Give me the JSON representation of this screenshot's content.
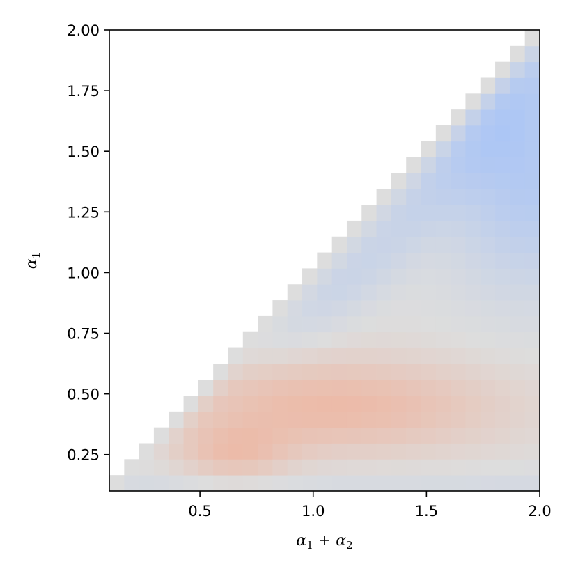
{
  "chart_data": {
    "type": "heatmap",
    "title": "",
    "xlabel": "α₁ + α₂",
    "ylabel": "α₁",
    "xlim": [
      0.1,
      2.0
    ],
    "ylim": [
      0.1,
      2.0
    ],
    "x_ticks": [
      0.5,
      1.0,
      1.5,
      2.0
    ],
    "x_tick_labels": [
      "0.5",
      "1.0",
      "1.5",
      "2.0"
    ],
    "y_ticks": [
      0.25,
      0.5,
      0.75,
      1.0,
      1.25,
      1.5,
      1.75,
      2.0
    ],
    "y_tick_labels": [
      "0.25",
      "0.50",
      "0.75",
      "1.00",
      "1.25",
      "1.50",
      "1.75",
      "2.00"
    ],
    "grid": false,
    "colormap": "coolwarm (low = blue, high = red)",
    "grid_cells": 29,
    "cell_width": 0.0655,
    "valid_region": "α₁ ≤ α₁ + α₂ (lower-right triangle); cells above the diagonal are empty",
    "value_range": [
      -1,
      1
    ],
    "colors": {
      "neutral": "#dddddd",
      "warm_max": "#f5a689",
      "cool_max": "#a6c3f8",
      "empty": "#ffffff"
    },
    "pattern": {
      "diagonal_edge_value": 0.0,
      "warm_peak": {
        "x": 1.1,
        "y": 0.45,
        "value": 0.62
      },
      "warm_secondary": {
        "x": 0.65,
        "y": 0.25,
        "value": 0.45
      },
      "cool_peak": {
        "x": 1.95,
        "y": 1.4,
        "value": -0.75
      },
      "cool_band": "values turn negative just below the diagonal for α₁ above ~0.55",
      "bottom_row": "near neutral, slightly warm"
    }
  }
}
